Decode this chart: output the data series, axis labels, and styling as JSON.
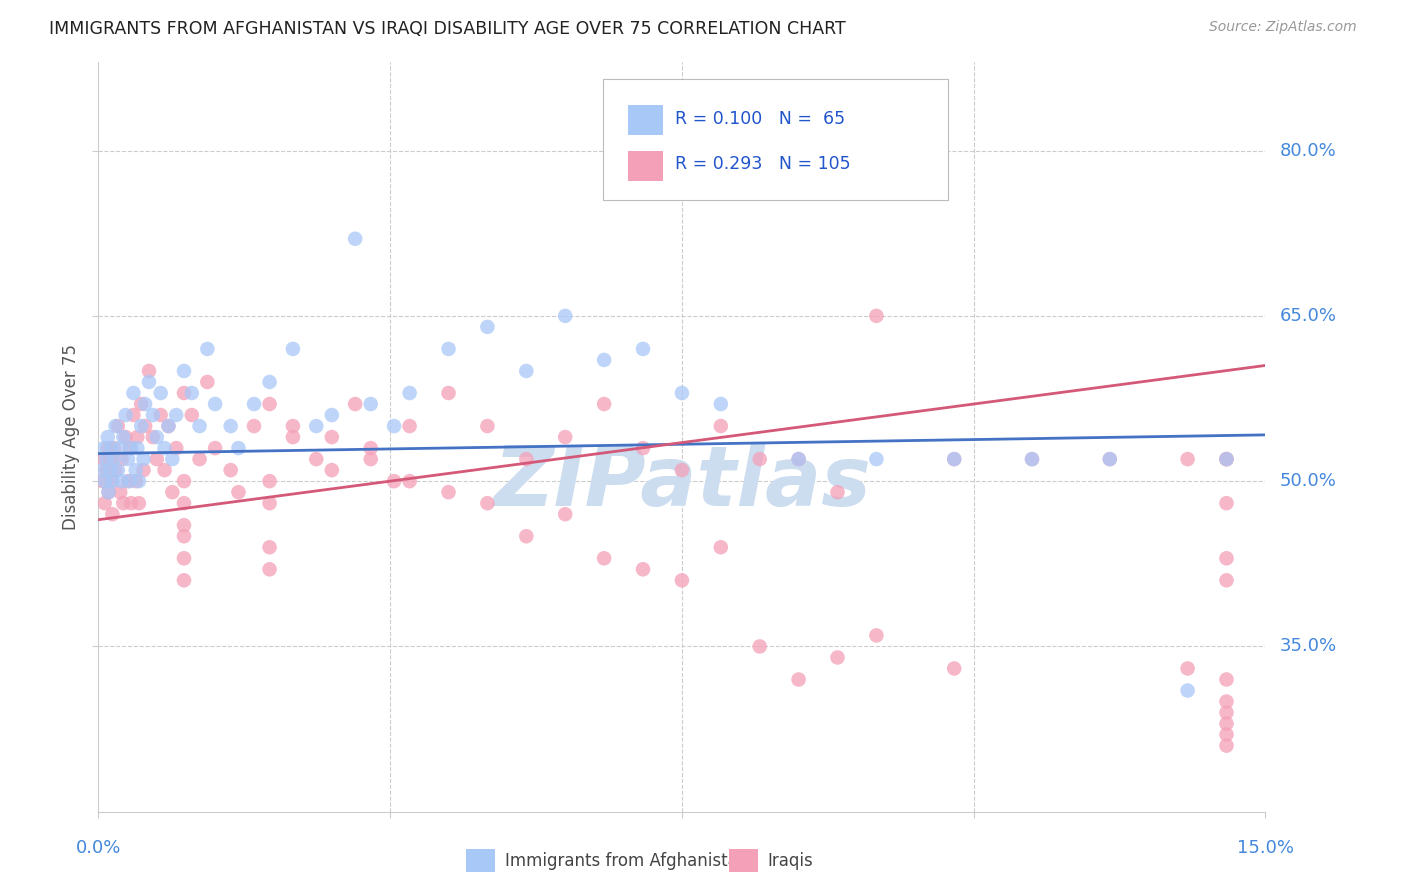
{
  "title": "IMMIGRANTS FROM AFGHANISTAN VS IRAQI DISABILITY AGE OVER 75 CORRELATION CHART",
  "source": "Source: ZipAtlas.com",
  "ylabel": "Disability Age Over 75",
  "legend_label1": "Immigrants from Afghanistan",
  "legend_label2": "Iraqis",
  "color_afghanistan": "#a8c8f8",
  "color_iraq": "#f4a0b8",
  "color_line_afghanistan": "#4472c4",
  "color_line_iraq": "#d45878",
  "color_title": "#222222",
  "color_source": "#999999",
  "color_axis_labels": "#4488dd",
  "color_watermark": "#ccddf0",
  "color_grid": "#cccccc",
  "xmin": 0.0,
  "xmax": 15.0,
  "ymin": 20.0,
  "ymax": 88.0,
  "ytick_vals": [
    35.0,
    50.0,
    65.0,
    80.0
  ],
  "ytick_labels": [
    "35.0%",
    "50.0%",
    "65.0%",
    "80.0%"
  ],
  "trendline_af_x0": 0.0,
  "trendline_af_y0": 52.5,
  "trendline_af_x1": 15.0,
  "trendline_af_y1": 54.2,
  "trendline_iq_x0": 0.0,
  "trendline_iq_y0": 46.5,
  "trendline_iq_x1": 15.0,
  "trendline_iq_y1": 60.5,
  "af_x": [
    0.05,
    0.07,
    0.08,
    0.1,
    0.12,
    0.13,
    0.15,
    0.17,
    0.18,
    0.2,
    0.22,
    0.25,
    0.28,
    0.3,
    0.32,
    0.35,
    0.38,
    0.4,
    0.42,
    0.45,
    0.48,
    0.5,
    0.52,
    0.55,
    0.58,
    0.6,
    0.65,
    0.7,
    0.75,
    0.8,
    0.85,
    0.9,
    0.95,
    1.0,
    1.1,
    1.2,
    1.3,
    1.4,
    1.5,
    1.7,
    1.8,
    2.0,
    2.2,
    2.5,
    2.8,
    3.0,
    3.3,
    3.5,
    3.8,
    4.0,
    4.5,
    5.0,
    5.5,
    6.0,
    6.5,
    7.0,
    7.5,
    8.0,
    9.0,
    10.0,
    11.0,
    12.0,
    13.0,
    14.0,
    14.5
  ],
  "af_y": [
    51,
    53,
    50,
    52,
    54,
    49,
    51,
    53,
    50,
    52,
    55,
    51,
    53,
    50,
    54,
    56,
    52,
    50,
    53,
    58,
    51,
    53,
    50,
    55,
    52,
    57,
    59,
    56,
    54,
    58,
    53,
    55,
    52,
    56,
    60,
    58,
    55,
    62,
    57,
    55,
    53,
    57,
    59,
    62,
    55,
    56,
    72,
    57,
    55,
    58,
    62,
    64,
    60,
    65,
    61,
    62,
    58,
    57,
    52,
    52,
    52,
    52,
    52,
    31,
    52
  ],
  "iq_x": [
    0.05,
    0.07,
    0.08,
    0.1,
    0.12,
    0.13,
    0.15,
    0.17,
    0.18,
    0.2,
    0.22,
    0.25,
    0.28,
    0.3,
    0.32,
    0.35,
    0.38,
    0.4,
    0.42,
    0.45,
    0.48,
    0.5,
    0.52,
    0.55,
    0.58,
    0.6,
    0.65,
    0.7,
    0.75,
    0.8,
    0.85,
    0.9,
    0.95,
    1.0,
    1.1,
    1.2,
    1.3,
    1.4,
    1.5,
    1.7,
    1.8,
    2.0,
    2.2,
    2.5,
    2.8,
    3.0,
    3.3,
    3.5,
    3.8,
    4.0,
    4.5,
    5.0,
    5.5,
    6.0,
    6.5,
    7.0,
    7.5,
    8.0,
    8.5,
    9.0,
    9.5,
    10.0,
    11.0,
    12.0,
    13.0,
    14.0,
    14.5,
    1.1,
    1.1,
    1.1,
    1.1,
    1.1,
    1.1,
    2.2,
    2.2,
    2.2,
    2.2,
    2.5,
    3.0,
    3.5,
    4.0,
    4.5,
    5.0,
    5.5,
    6.0,
    6.5,
    7.0,
    7.5,
    8.0,
    8.5,
    9.0,
    9.5,
    10.0,
    11.0,
    14.0,
    14.5,
    14.5,
    14.5,
    14.5,
    14.5,
    14.5,
    14.5,
    14.5,
    14.5,
    14.5
  ],
  "iq_y": [
    50,
    52,
    48,
    51,
    53,
    49,
    52,
    50,
    47,
    53,
    51,
    55,
    49,
    52,
    48,
    54,
    50,
    53,
    48,
    56,
    50,
    54,
    48,
    57,
    51,
    55,
    60,
    54,
    52,
    56,
    51,
    55,
    49,
    53,
    58,
    56,
    52,
    59,
    53,
    51,
    49,
    55,
    57,
    55,
    52,
    54,
    57,
    53,
    50,
    55,
    58,
    55,
    52,
    54,
    57,
    53,
    51,
    55,
    52,
    52,
    49,
    65,
    52,
    52,
    52,
    52,
    52,
    43,
    45,
    41,
    48,
    46,
    50,
    44,
    42,
    48,
    50,
    54,
    51,
    52,
    50,
    49,
    48,
    45,
    47,
    43,
    42,
    41,
    44,
    35,
    32,
    34,
    36,
    33,
    33,
    52,
    48,
    43,
    41,
    28,
    30,
    27,
    26,
    29,
    32
  ]
}
